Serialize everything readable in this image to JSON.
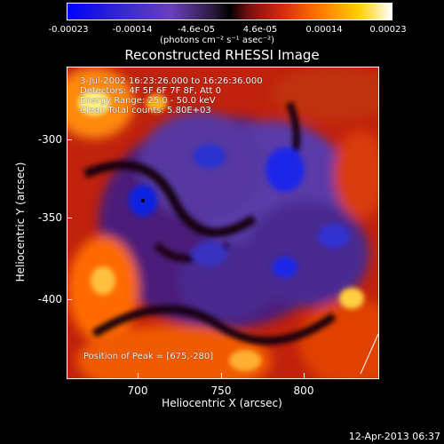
{
  "colorbar": {
    "ticks": [
      "-0.00023",
      "-0.00014",
      "-4.6e-05",
      "4.6e-05",
      "0.00014",
      "0.00023"
    ],
    "units": "(photons cm⁻² s⁻¹ asec⁻²)"
  },
  "title": "Reconstructed RHESSI Image",
  "annotations": {
    "time_range": "3-Jul-2002 16:23:26.000 to 16:26:36.000",
    "detectors": "Detectors: 4F 5F 6F 7F 8F, Att 0",
    "energy": "Energy Range: 25.0 - 50.0 keV",
    "clean": "Clean     Total counts: 5.80E+03",
    "peak": "Position of Peak = [675,-280]"
  },
  "axes": {
    "xlabel": "Heliocentric X (arcsec)",
    "ylabel": "Heliocentric Y (arcsec)",
    "xticks": [
      "700",
      "750",
      "800"
    ],
    "yticks": [
      "-300",
      "-350",
      "-400"
    ]
  },
  "datestamp": "12-Apr-2013 06:37"
}
